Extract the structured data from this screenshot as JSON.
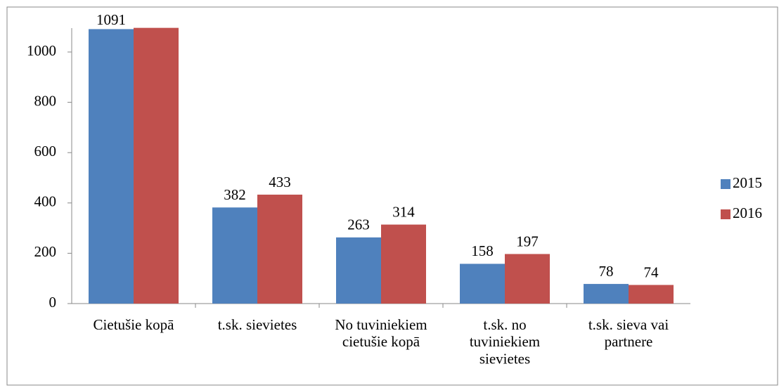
{
  "chart_data": {
    "type": "bar",
    "categories": [
      "Cietušie kopā",
      "t.sk. sievietes",
      "No tuviniekiem\ncietušie kopā",
      "t.sk. no\ntuviniekiem\nsievietes",
      "t.sk. sieva vai\npartnere"
    ],
    "series": [
      {
        "name": "2015",
        "color": "#4f81bd",
        "values": [
          1091,
          382,
          263,
          158,
          78
        ],
        "value_labels": [
          "1091",
          "382",
          "263",
          "158",
          "78"
        ]
      },
      {
        "name": "2016",
        "color": "#c0504d",
        "values": [
          1096,
          433,
          314,
          197,
          74
        ],
        "value_labels": [
          null,
          "433",
          "314",
          "197",
          "74"
        ]
      }
    ],
    "ylim": [
      0,
      1095
    ],
    "yticks": [
      0,
      200,
      400,
      600,
      800,
      1000
    ],
    "legend": "right"
  }
}
